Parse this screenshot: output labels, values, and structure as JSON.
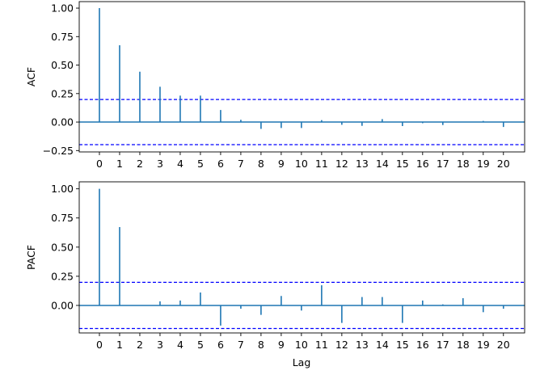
{
  "chart_data": [
    {
      "type": "stem",
      "ylabel": "ACF",
      "xlabel": "",
      "x": [
        0,
        1,
        2,
        3,
        4,
        5,
        6,
        7,
        8,
        9,
        10,
        11,
        12,
        13,
        14,
        15,
        16,
        17,
        18,
        19,
        20
      ],
      "values": [
        1.0,
        0.674,
        0.442,
        0.31,
        0.232,
        0.232,
        0.106,
        0.02,
        -0.06,
        -0.052,
        -0.052,
        0.017,
        -0.024,
        -0.033,
        0.026,
        -0.035,
        -0.01,
        -0.026,
        0.0,
        0.01,
        -0.043
      ],
      "confidence_band": [
        -0.198,
        0.198
      ],
      "xlim": [
        -1,
        21.05
      ],
      "ylim": [
        -0.262,
        1.057
      ],
      "yticks": [
        -0.25,
        0.0,
        0.25,
        0.5,
        0.75,
        1.0
      ],
      "ytick_labels": [
        "−0.25",
        "0.00",
        "0.25",
        "0.50",
        "0.75",
        "1.00"
      ],
      "xtick_labels": [
        "0",
        "1",
        "2",
        "3",
        "4",
        "5",
        "6",
        "7",
        "8",
        "9",
        "10",
        "11",
        "12",
        "13",
        "14",
        "15",
        "16",
        "17",
        "18",
        "19",
        "20"
      ],
      "stem_color": "#1f77b4",
      "band_color": "#0000ff"
    },
    {
      "type": "stem",
      "ylabel": "PACF",
      "xlabel": "Lag",
      "x": [
        0,
        1,
        2,
        3,
        4,
        5,
        6,
        7,
        8,
        9,
        10,
        11,
        12,
        13,
        14,
        15,
        16,
        17,
        18,
        19,
        20
      ],
      "values": [
        1.0,
        0.672,
        0.0,
        0.035,
        0.042,
        0.111,
        -0.173,
        -0.028,
        -0.081,
        0.081,
        -0.044,
        0.173,
        -0.15,
        0.072,
        0.072,
        -0.15,
        0.042,
        0.009,
        0.062,
        -0.058,
        -0.028
      ],
      "confidence_band": [
        -0.198,
        0.198
      ],
      "xlim": [
        -1,
        21.05
      ],
      "ylim": [
        -0.236,
        1.06
      ],
      "yticks": [
        0.0,
        0.25,
        0.5,
        0.75,
        1.0
      ],
      "ytick_labels": [
        "0.00",
        "0.25",
        "0.50",
        "0.75",
        "1.00"
      ],
      "xtick_labels": [
        "0",
        "1",
        "2",
        "3",
        "4",
        "5",
        "6",
        "7",
        "8",
        "9",
        "10",
        "11",
        "12",
        "13",
        "14",
        "15",
        "16",
        "17",
        "18",
        "19",
        "20"
      ],
      "stem_color": "#1f77b4",
      "band_color": "#0000ff"
    }
  ]
}
